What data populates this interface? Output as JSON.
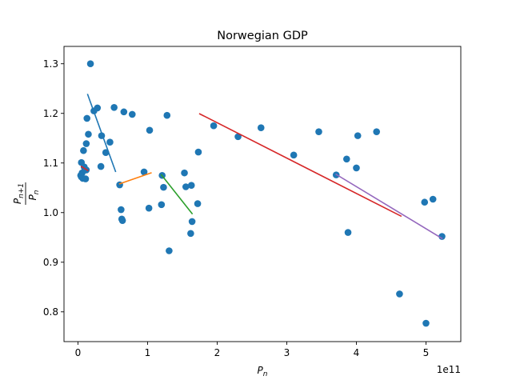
{
  "chart_data": {
    "type": "scatter",
    "title": "Norwegian GDP",
    "xlabel": "P_n",
    "ylabel": "P_{n+1} / P_n",
    "x_multiplier": "1e11",
    "xlim": [
      -0.2,
      5.5
    ],
    "ylim": [
      0.74,
      1.335
    ],
    "xticks": [
      0,
      1,
      2,
      3,
      4,
      5
    ],
    "yticks": [
      0.8,
      0.9,
      1.0,
      1.1,
      1.2,
      1.3
    ],
    "xtick_labels": [
      "0",
      "1",
      "2",
      "3",
      "4",
      "5"
    ],
    "ytick_labels": [
      "0.8",
      "0.9",
      "1.0",
      "1.1",
      "1.2",
      "1.3"
    ],
    "grid": false,
    "point_color": "#1f77b4",
    "series": [
      {
        "kind": "points",
        "x": [
          0.18,
          0.13,
          0.12,
          0.15,
          0.08,
          0.05,
          0.06,
          0.04,
          0.05,
          0.07,
          0.09,
          0.1,
          0.11,
          0.12,
          0.28,
          0.23,
          0.34,
          0.33,
          0.4,
          0.46,
          0.52,
          0.6,
          0.66,
          0.78,
          0.62,
          0.64,
          0.63,
          0.95,
          1.03,
          1.02,
          1.2,
          1.21,
          1.28,
          1.23,
          1.31,
          1.53,
          1.55,
          1.62,
          1.63,
          1.64,
          1.72,
          1.73,
          1.95,
          2.3,
          2.63,
          3.1,
          3.46,
          3.71,
          3.86,
          3.88,
          4.0,
          4.02,
          4.29,
          4.62,
          4.98,
          5.0,
          5.1,
          5.23
        ],
        "y": [
          1.3,
          1.19,
          1.139,
          1.158,
          1.125,
          1.101,
          1.08,
          1.075,
          1.072,
          1.069,
          1.092,
          1.086,
          1.068,
          1.086,
          1.211,
          1.205,
          1.155,
          1.093,
          1.121,
          1.142,
          1.212,
          1.056,
          1.203,
          1.198,
          1.006,
          0.984,
          0.987,
          1.082,
          1.166,
          1.009,
          1.016,
          1.075,
          1.196,
          1.051,
          0.923,
          1.08,
          1.052,
          0.958,
          1.055,
          0.982,
          1.018,
          1.122,
          1.175,
          1.153,
          1.171,
          1.116,
          1.163,
          1.076,
          1.108,
          0.96,
          1.09,
          1.155,
          1.163,
          0.836,
          1.021,
          0.777,
          1.027,
          0.952
        ]
      },
      {
        "kind": "fit",
        "color": "#d62728",
        "x": [
          0.05,
          0.14
        ],
        "y": [
          1.093,
          1.085
        ]
      },
      {
        "kind": "fit",
        "color": "#1f77b4",
        "x": [
          0.14,
          0.54
        ],
        "y": [
          1.238,
          1.083
        ]
      },
      {
        "kind": "fit",
        "color": "#ff7f0e",
        "x": [
          0.6,
          1.05
        ],
        "y": [
          1.058,
          1.08
        ]
      },
      {
        "kind": "fit",
        "color": "#2ca02c",
        "x": [
          1.2,
          1.64
        ],
        "y": [
          1.076,
          0.998
        ]
      },
      {
        "kind": "fit",
        "color": "#d62728",
        "x": [
          1.75,
          4.64
        ],
        "y": [
          1.199,
          0.993
        ]
      },
      {
        "kind": "fit",
        "color": "#9467bd",
        "x": [
          3.71,
          5.23
        ],
        "y": [
          1.077,
          0.948
        ]
      }
    ]
  }
}
